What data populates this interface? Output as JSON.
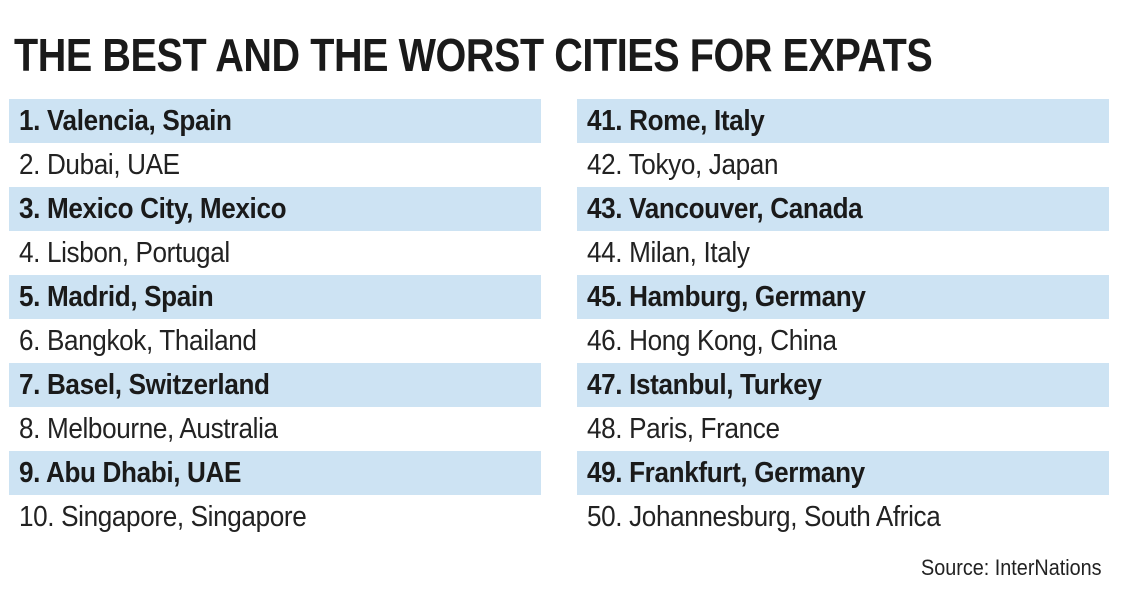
{
  "title": "THE BEST AND THE WORST CITIES FOR EXPATS",
  "best": [
    "1. Valencia, Spain",
    "2. Dubai, UAE",
    "3. Mexico City, Mexico",
    "4. Lisbon, Portugal",
    "5. Madrid, Spain",
    "6. Bangkok, Thailand",
    "7. Basel, Switzerland",
    "8. Melbourne, Australia",
    "9. Abu Dhabi, UAE",
    "10. Singapore, Singapore"
  ],
  "worst": [
    "41. Rome, Italy",
    "42. Tokyo, Japan",
    "43. Vancouver, Canada",
    "44. Milan, Italy",
    "45. Hamburg, Germany",
    "46. Hong Kong, China",
    "47. Istanbul, Turkey",
    "48. Paris, France",
    "49. Frankfurt, Germany",
    "50. Johannesburg, South Africa"
  ],
  "source": "Source: InterNations",
  "colors": {
    "shaded_row": "#cde3f3",
    "text": "#1a1a1a"
  }
}
